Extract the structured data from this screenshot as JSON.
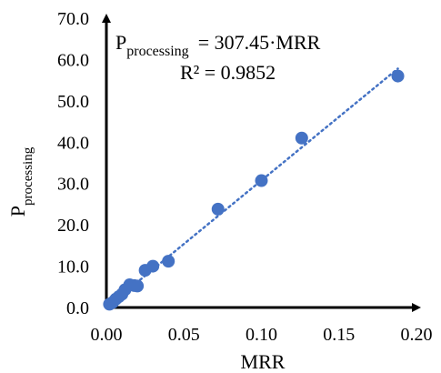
{
  "chart_data": {
    "type": "scatter",
    "xlabel": "MRR",
    "ylabel": {
      "main": "P",
      "sub": "processing"
    },
    "xlim": [
      0,
      0.2
    ],
    "ylim": [
      0,
      70
    ],
    "x_ticks": [
      "0.00",
      "0.05",
      "0.10",
      "0.15",
      "0.20"
    ],
    "y_ticks": [
      "0.0",
      "10.0",
      "20.0",
      "30.0",
      "40.0",
      "50.0",
      "60.0",
      "70.0"
    ],
    "x_tick_values": [
      0,
      0.05,
      0.1,
      0.15,
      0.2
    ],
    "y_tick_values": [
      0,
      10,
      20,
      30,
      40,
      50,
      60,
      70
    ],
    "grid": false,
    "marker_color": "#4472C4",
    "trendline": {
      "type": "linear",
      "style": "dotted",
      "color": "#4472C4",
      "slope": 307.45,
      "x_range": [
        0.0,
        0.188
      ]
    },
    "annotation": {
      "lhs_main": "P",
      "lhs_sub": "processing",
      "rhs": "= 307.45·MRR",
      "r2": "R² = 0.9852"
    },
    "points": [
      {
        "x": 0.002,
        "y": 0.8
      },
      {
        "x": 0.004,
        "y": 1.2
      },
      {
        "x": 0.006,
        "y": 2.0
      },
      {
        "x": 0.008,
        "y": 2.6
      },
      {
        "x": 0.01,
        "y": 3.2
      },
      {
        "x": 0.012,
        "y": 4.3
      },
      {
        "x": 0.015,
        "y": 5.5
      },
      {
        "x": 0.018,
        "y": 5.3
      },
      {
        "x": 0.02,
        "y": 5.2
      },
      {
        "x": 0.025,
        "y": 9.0
      },
      {
        "x": 0.03,
        "y": 10.0
      },
      {
        "x": 0.04,
        "y": 11.2
      },
      {
        "x": 0.072,
        "y": 23.8
      },
      {
        "x": 0.1,
        "y": 30.7
      },
      {
        "x": 0.126,
        "y": 41.0
      },
      {
        "x": 0.188,
        "y": 56.0
      }
    ]
  }
}
